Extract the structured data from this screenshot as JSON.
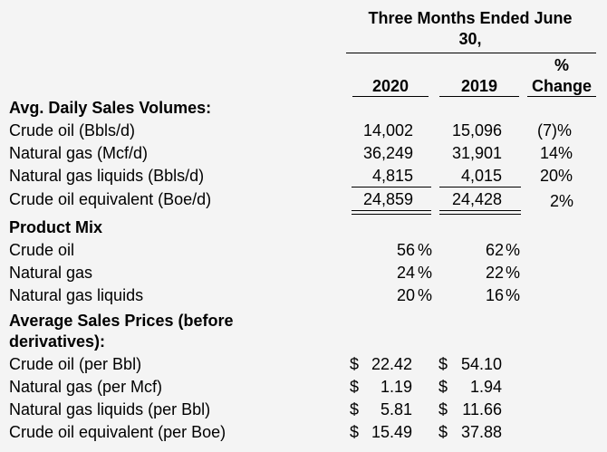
{
  "header": {
    "period_line1": "Three Months Ended June",
    "period_line2": "30,",
    "col_2020": "2020",
    "col_2019": "2019",
    "pct_line1": "%",
    "pct_line2": "Change"
  },
  "volumes": {
    "heading": "Avg. Daily Sales Volumes:",
    "rows": [
      {
        "label": "Crude oil (Bbls/d)",
        "v2020": "14,002",
        "v2019": "15,096",
        "change": "(7)%"
      },
      {
        "label": "Natural gas (Mcf/d)",
        "v2020": "36,249",
        "v2019": "31,901",
        "change": "14%"
      },
      {
        "label": "Natural gas liquids (Bbls/d)",
        "v2020": "4,815",
        "v2019": "4,015",
        "change": "20%"
      },
      {
        "label": "Crude oil equivalent (Boe/d)",
        "v2020": "24,859",
        "v2019": "24,428",
        "change": "2%"
      }
    ]
  },
  "mix": {
    "heading": "Product Mix",
    "rows": [
      {
        "label": "Crude oil",
        "v2020": "56",
        "v2019": "62",
        "unit": "%"
      },
      {
        "label": "Natural gas",
        "v2020": "24",
        "v2019": "22",
        "unit": "%"
      },
      {
        "label": "Natural gas liquids",
        "v2020": "20",
        "v2019": "16",
        "unit": "%"
      }
    ]
  },
  "prices": {
    "heading_line1": "Average Sales Prices (before",
    "heading_line2": "derivatives):",
    "currency": "$",
    "rows": [
      {
        "label": "Crude oil (per Bbl)",
        "v2020": "22.42",
        "v2019": "54.10"
      },
      {
        "label": "Natural gas (per Mcf)",
        "v2020": "1.19",
        "v2019": "1.94"
      },
      {
        "label": "Natural gas liquids (per Bbl)",
        "v2020": "5.81",
        "v2019": "11.66"
      },
      {
        "label": "Crude oil equivalent (per Boe)",
        "v2020": "15.49",
        "v2019": "37.88"
      }
    ]
  }
}
